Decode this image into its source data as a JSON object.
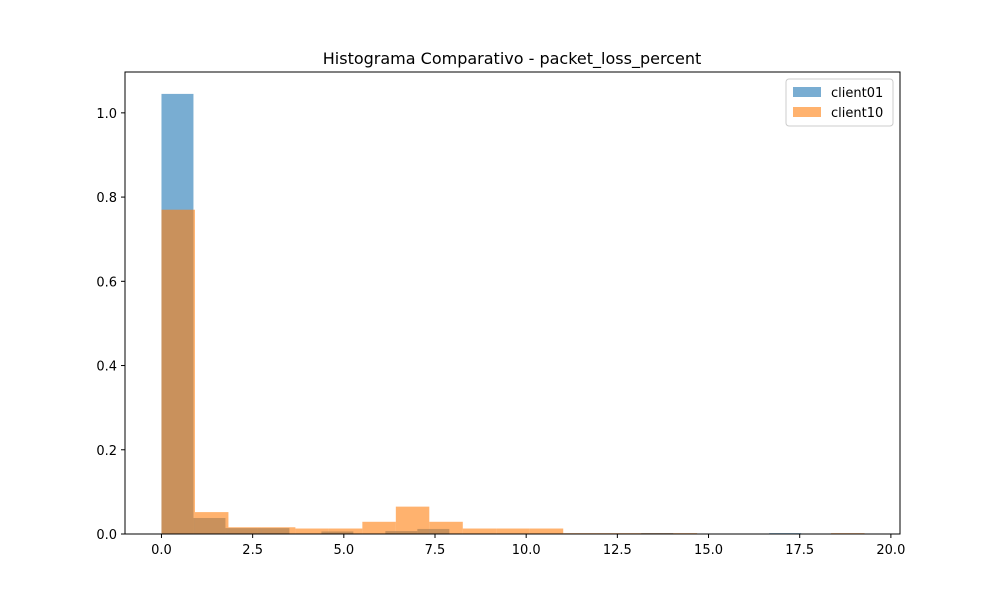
{
  "chart_data": {
    "type": "bar",
    "title": "Histograma Comparativo - packet_loss_percent",
    "xlabel": "",
    "ylabel": "",
    "xlim": [
      -1.0,
      20.25
    ],
    "ylim": [
      0,
      1.097
    ],
    "xticks": [
      0.0,
      2.5,
      5.0,
      7.5,
      10.0,
      12.5,
      15.0,
      17.5,
      20.0
    ],
    "xtick_labels": [
      "0.0",
      "2.5",
      "5.0",
      "7.5",
      "10.0",
      "12.5",
      "15.0",
      "17.5",
      "20.0"
    ],
    "yticks": [
      0.0,
      0.2,
      0.4,
      0.6,
      0.8,
      1.0
    ],
    "ytick_labels": [
      "0.0",
      "0.2",
      "0.4",
      "0.6",
      "0.8",
      "1.0"
    ],
    "legend_position": "top-right",
    "series": [
      {
        "name": "client01",
        "color": "#1f77b4",
        "bin_start": 0.0,
        "bin_width": 0.877,
        "values": [
          1.045,
          0.038,
          0.014,
          0.014,
          0.0,
          0.006,
          0.0,
          0.007,
          0.012,
          0.0,
          0.0,
          0.0,
          0.0,
          0.0,
          0.0,
          0.002,
          0.0,
          0.0,
          0.0,
          0.002
        ]
      },
      {
        "name": "client10",
        "color": "#ff7f0e",
        "bin_start": 0.0,
        "bin_width": 0.918,
        "values": [
          0.77,
          0.052,
          0.016,
          0.016,
          0.013,
          0.013,
          0.029,
          0.065,
          0.029,
          0.013,
          0.013,
          0.013,
          0.002,
          0.002,
          0.002,
          0.002,
          0.0,
          0.0,
          0.0,
          0.0,
          0.002
        ]
      }
    ]
  }
}
